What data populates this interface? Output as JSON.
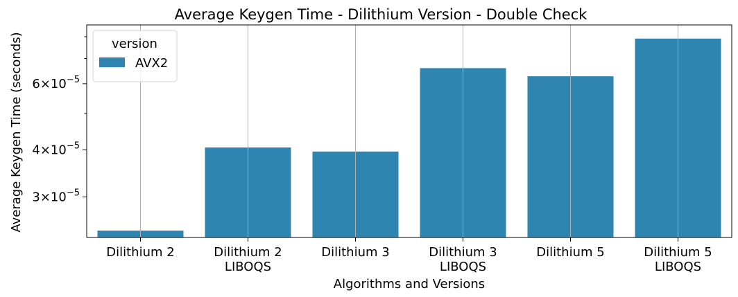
{
  "chart_data": {
    "type": "bar",
    "title": "Average Keygen Time - Dilithium Version - Double Check",
    "xlabel": "Algorithms and Versions",
    "ylabel": "Average Keygen Time (seconds)",
    "yscale": "log",
    "ylim": [
      2.34e-05,
      8.6e-05
    ],
    "categories": [
      [
        "Dilithium 2"
      ],
      [
        "Dilithium 2",
        "LIBOQS"
      ],
      [
        "Dilithium 3"
      ],
      [
        "Dilithium 3",
        "LIBOQS"
      ],
      [
        "Dilithium 5"
      ],
      [
        "Dilithium 5",
        "LIBOQS"
      ]
    ],
    "series": [
      {
        "name": "AVX2",
        "color": "#2e86b0",
        "values": [
          2.44e-05,
          4.06e-05,
          3.96e-05,
          6.6e-05,
          6.28e-05,
          7.91e-05
        ]
      }
    ],
    "yticks": [
      {
        "value": 3e-05,
        "mantissa": "3",
        "times": "×",
        "base": "10",
        "exp": "−5"
      },
      {
        "value": 4e-05,
        "mantissa": "4",
        "times": "×",
        "base": "10",
        "exp": "−5"
      },
      {
        "value": 6e-05,
        "mantissa": "6",
        "times": "×",
        "base": "10",
        "exp": "−5"
      }
    ],
    "minor_yticks": [
      5e-05,
      7e-05,
      8e-05
    ],
    "grid": "vertical",
    "legend": {
      "title": "version",
      "placement": "top-left"
    }
  }
}
